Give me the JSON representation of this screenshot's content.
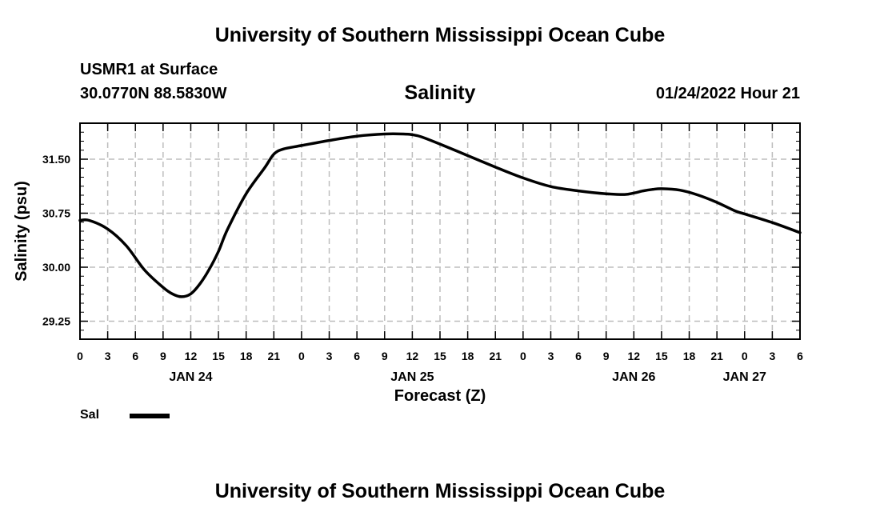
{
  "header": {
    "title": "University of Southern Mississippi Ocean Cube",
    "station": "USMR1 at Surface",
    "coordinates": "30.0770N  88.5830W",
    "datetime": "01/24/2022 Hour 21"
  },
  "footer": {
    "title": "University of Southern Mississippi Ocean Cube"
  },
  "legend": {
    "label": "Sal",
    "color": "#000000"
  },
  "chart_data": {
    "type": "line",
    "title": "Salinity",
    "xlabel": "Forecast (Z)",
    "ylabel": "Salinity (psu)",
    "xlim": [
      0,
      78
    ],
    "ylim": [
      29.0,
      32.0
    ],
    "grid": true,
    "legend_position": "bottom-left",
    "y_ticks": [
      "29.25",
      "30.00",
      "30.75",
      "31.50"
    ],
    "x_tick_labels": [
      "0",
      "3",
      "6",
      "9",
      "12",
      "15",
      "18",
      "21",
      "0",
      "3",
      "6",
      "9",
      "12",
      "15",
      "18",
      "21",
      "0",
      "3",
      "6",
      "9",
      "12",
      "15",
      "18",
      "21",
      "0",
      "3",
      "6"
    ],
    "date_labels": [
      {
        "hour": 12,
        "label": "JAN 24"
      },
      {
        "hour": 36,
        "label": "JAN 25"
      },
      {
        "hour": 60,
        "label": "JAN 26"
      },
      {
        "hour": 72,
        "label": "JAN 27"
      }
    ],
    "series": [
      {
        "name": "Sal",
        "color": "#000000",
        "x": [
          0,
          1,
          3,
          5,
          7,
          9,
          10,
          11,
          12,
          13,
          14,
          15,
          16,
          18,
          20,
          21,
          22,
          24,
          27,
          30,
          33,
          35,
          36,
          37,
          39,
          42,
          45,
          48,
          51,
          54,
          57,
          59,
          60,
          61,
          62,
          63,
          65,
          67,
          69,
          71,
          72,
          75,
          78
        ],
        "y": [
          30.65,
          30.65,
          30.53,
          30.3,
          29.96,
          29.72,
          29.63,
          29.59,
          29.63,
          29.77,
          29.97,
          30.22,
          30.53,
          31.02,
          31.38,
          31.57,
          31.64,
          31.69,
          31.76,
          31.82,
          31.85,
          31.85,
          31.84,
          31.81,
          31.71,
          31.55,
          31.39,
          31.24,
          31.12,
          31.06,
          31.02,
          31.01,
          31.03,
          31.06,
          31.08,
          31.09,
          31.07,
          31.0,
          30.9,
          30.78,
          30.74,
          30.62,
          30.48
        ]
      }
    ]
  }
}
